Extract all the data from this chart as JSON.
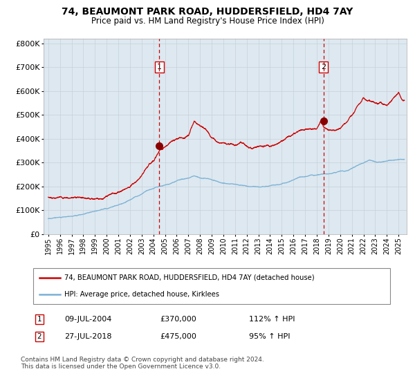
{
  "title_line1": "74, BEAUMONT PARK ROAD, HUDDERSFIELD, HD4 7AY",
  "title_line2": "Price paid vs. HM Land Registry's House Price Index (HPI)",
  "red_line_label": "74, BEAUMONT PARK ROAD, HUDDERSFIELD, HD4 7AY (detached house)",
  "blue_line_label": "HPI: Average price, detached house, Kirklees",
  "annotation1_date": "09-JUL-2004",
  "annotation1_price": "£370,000",
  "annotation1_hpi": "112% ↑ HPI",
  "annotation2_date": "27-JUL-2018",
  "annotation2_price": "£475,000",
  "annotation2_hpi": "95% ↑ HPI",
  "footer_line1": "Contains HM Land Registry data © Crown copyright and database right 2024.",
  "footer_line2": "This data is licensed under the Open Government Licence v3.0.",
  "ylim_min": 0,
  "ylim_max": 820000,
  "red_color": "#cc0000",
  "blue_color": "#7ab0d4",
  "bg_color": "#dde8f0",
  "vline_color": "#cc0000",
  "marker_color": "#880000",
  "grid_color": "#c8d0d8",
  "sale1_year": 2004.52,
  "sale1_value": 370000,
  "sale2_year": 2018.57,
  "sale2_value": 475000,
  "xmin": 1995,
  "xmax": 2025
}
